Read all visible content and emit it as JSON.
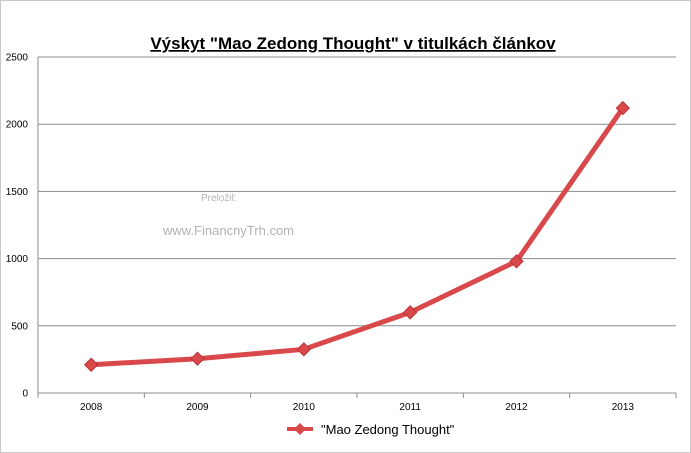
{
  "watermark": {
    "line1": "Preložil:",
    "line2": "www.FinancnyTrh.com"
  },
  "colors": {
    "series": "#d9484a",
    "grid": "#8c8c8c",
    "axis": "#8c8c8c"
  },
  "chart_data": {
    "type": "line",
    "title": "Výskyt \"Mao Zedong Thought\" v titulkách článkov",
    "xlabel": "",
    "ylabel": "",
    "categories": [
      "2008",
      "2009",
      "2010",
      "2011",
      "2012",
      "2013"
    ],
    "series": [
      {
        "name": "\"Mao Zedong Thought\"",
        "values": [
          210,
          255,
          325,
          600,
          980,
          2120
        ],
        "marker": "diamond"
      }
    ],
    "ylim": [
      0,
      2500
    ],
    "yticks": [
      0,
      500,
      1000,
      1500,
      2000,
      2500
    ],
    "grid": true,
    "legend": "bottom"
  }
}
